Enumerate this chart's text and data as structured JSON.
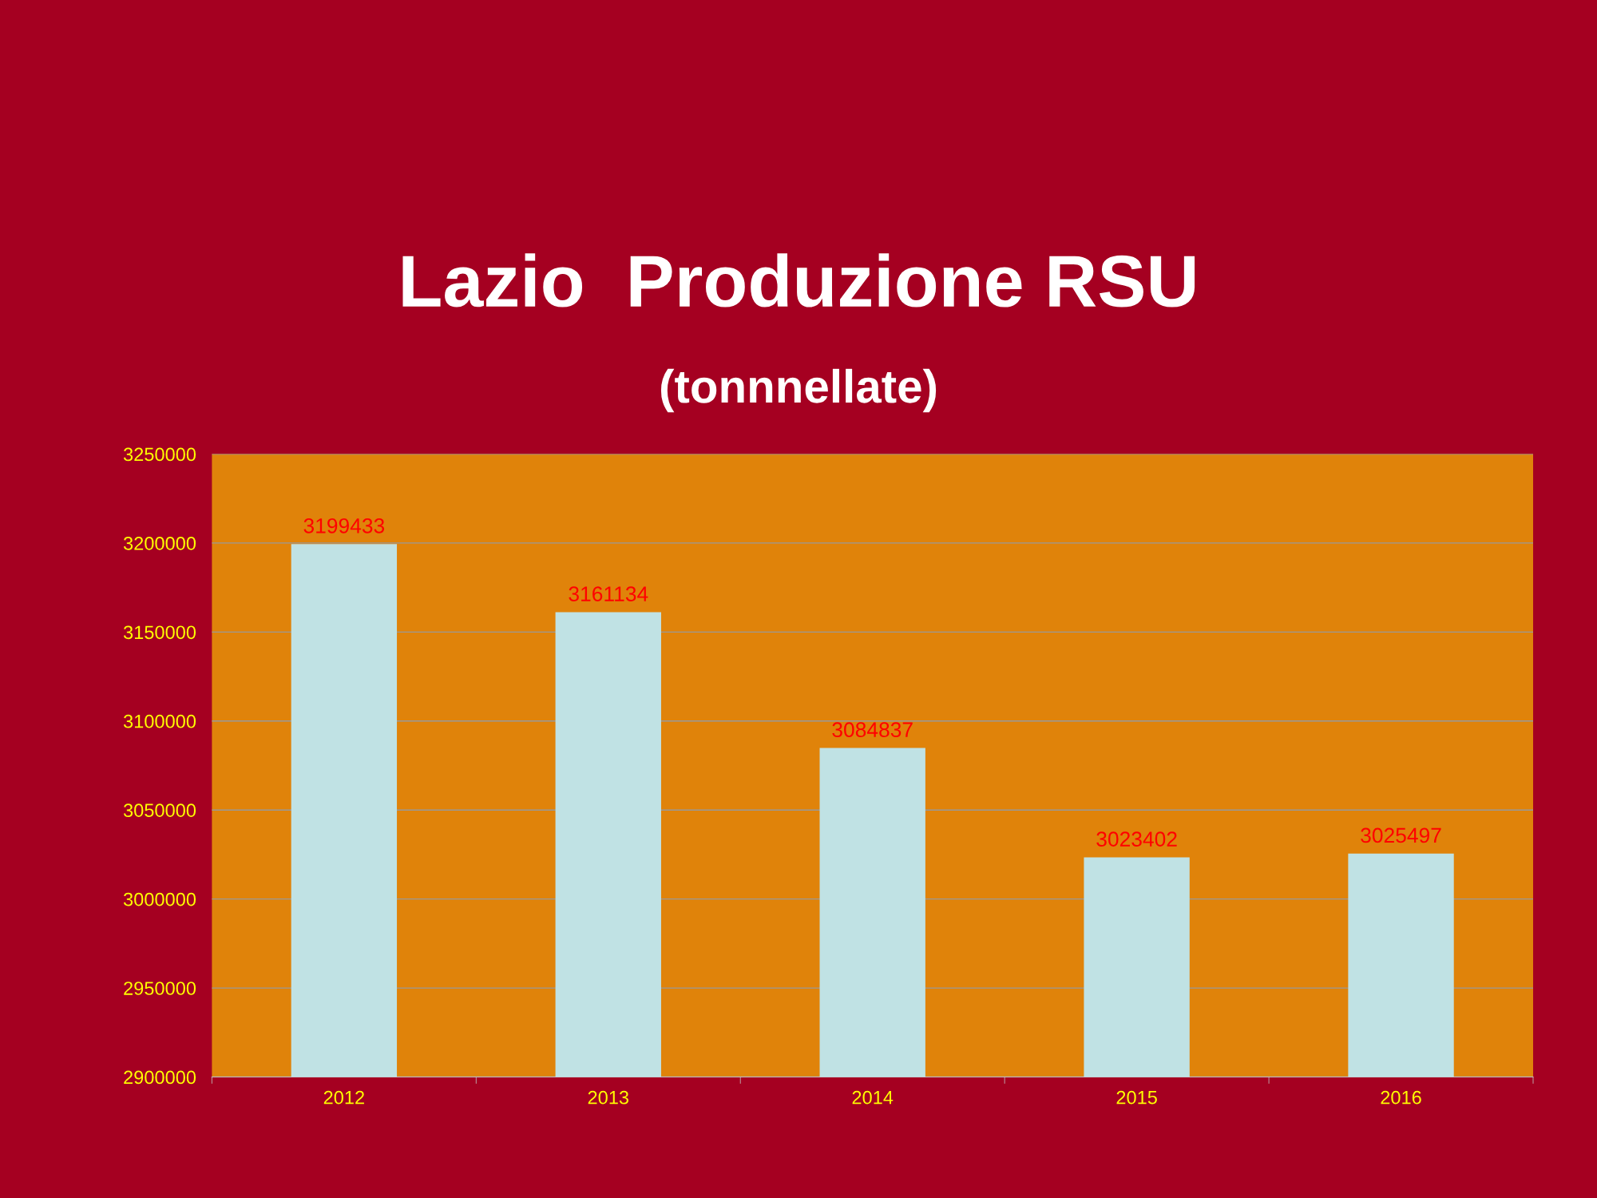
{
  "chart_data": {
    "type": "bar",
    "title": "Lazio  Produzione RSU",
    "subtitle": "(tonnnellate)",
    "categories": [
      "2012",
      "2013",
      "2014",
      "2015",
      "2016"
    ],
    "values": [
      3199433,
      3161134,
      3084837,
      3023402,
      3025497
    ],
    "color": "#c0e2e4",
    "ylim": [
      2900000,
      3250000
    ],
    "yticks": [
      2900000,
      2950000,
      3000000,
      3050000,
      3100000,
      3150000,
      3200000,
      3250000
    ],
    "grid": "y",
    "data_labels": true
  }
}
